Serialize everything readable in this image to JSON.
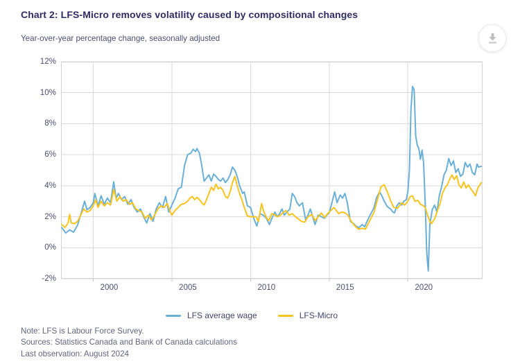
{
  "header": {
    "title": "Chart 2: LFS-Micro removes volatility caused by compositional changes",
    "subtitle": "Year-over-year percentage change, seasonally adjusted"
  },
  "toolbar": {
    "download_icon": "download-arrow-in-circle"
  },
  "footer": {
    "note": "Note: LFS is Labour Force Survey.",
    "sources": "Sources: Statistics Canada and Bank of Canada calculations",
    "last_observation": "Last observation: August 2024"
  },
  "chart_data": {
    "type": "line",
    "title": "Chart 2: LFS-Micro removes volatility caused by compositional changes",
    "subtitle": "Year-over-year percentage change, seasonally adjusted",
    "xlim": [
      1997.95,
      2024.75
    ],
    "ylim": [
      -2,
      12
    ],
    "grid": true,
    "gridline_color": "#dadada",
    "legend_position": "bottom",
    "y_ticks": [
      -2,
      0,
      2,
      4,
      6,
      8,
      10,
      12
    ],
    "y_tick_labels": [
      "-2%",
      "0%",
      "2%",
      "4%",
      "6%",
      "8%",
      "10%",
      "12%"
    ],
    "x_ticks": [
      2000,
      2005,
      2010,
      2015,
      2020
    ],
    "x_tick_labels": [
      "2000",
      "2005",
      "2010",
      "2015",
      "2020"
    ],
    "series": [
      {
        "name": "LFS average wage",
        "color": "#6aafd8",
        "x": [
          1998.0,
          1998.25,
          1998.5,
          1998.75,
          1999.0,
          1999.25,
          1999.45,
          1999.6,
          1999.8,
          2000.0,
          2000.1,
          2000.3,
          2000.5,
          2000.7,
          2000.9,
          2001.1,
          2001.3,
          2001.45,
          2001.6,
          2001.8,
          2002.0,
          2002.2,
          2002.4,
          2002.6,
          2002.8,
          2003.0,
          2003.2,
          2003.4,
          2003.6,
          2003.8,
          2004.0,
          2004.2,
          2004.4,
          2004.6,
          2004.8,
          2005.0,
          2005.2,
          2005.4,
          2005.6,
          2005.8,
          2006.0,
          2006.2,
          2006.35,
          2006.5,
          2006.6,
          2006.75,
          2006.9,
          2007.05,
          2007.2,
          2007.35,
          2007.5,
          2007.65,
          2007.8,
          2007.95,
          2008.1,
          2008.25,
          2008.4,
          2008.55,
          2008.7,
          2008.85,
          2009.0,
          2009.15,
          2009.3,
          2009.5,
          2009.6,
          2009.8,
          2010.0,
          2010.2,
          2010.4,
          2010.6,
          2010.8,
          2011.0,
          2011.2,
          2011.4,
          2011.55,
          2011.7,
          2011.85,
          2012.0,
          2012.15,
          2012.3,
          2012.5,
          2012.65,
          2012.8,
          2012.95,
          2013.1,
          2013.3,
          2013.5,
          2013.65,
          2013.8,
          2013.95,
          2014.1,
          2014.3,
          2014.5,
          2014.7,
          2014.85,
          2015.0,
          2015.2,
          2015.35,
          2015.5,
          2015.7,
          2015.85,
          2016.0,
          2016.15,
          2016.35,
          2016.55,
          2016.7,
          2016.9,
          2017.1,
          2017.25,
          2017.5,
          2017.7,
          2017.85,
          2018.0,
          2018.2,
          2018.35,
          2018.5,
          2018.7,
          2018.9,
          2019.05,
          2019.15,
          2019.3,
          2019.45,
          2019.6,
          2019.75,
          2019.9,
          2020.0,
          2020.1,
          2020.2,
          2020.3,
          2020.4,
          2020.5,
          2020.6,
          2020.7,
          2020.8,
          2020.9,
          2021.0,
          2021.1,
          2021.2,
          2021.3,
          2021.4,
          2021.55,
          2021.7,
          2021.85,
          2022.0,
          2022.15,
          2022.3,
          2022.45,
          2022.6,
          2022.75,
          2022.9,
          2023.05,
          2023.2,
          2023.35,
          2023.5,
          2023.65,
          2023.8,
          2023.95,
          2024.1,
          2024.25,
          2024.4,
          2024.5,
          2024.67
        ],
        "y": [
          1.3,
          0.95,
          1.15,
          1.0,
          1.45,
          2.3,
          3.0,
          2.45,
          2.6,
          2.9,
          3.5,
          2.7,
          3.35,
          2.8,
          3.2,
          2.9,
          4.25,
          3.2,
          3.5,
          3.1,
          3.3,
          2.8,
          3.1,
          2.6,
          2.3,
          2.5,
          2.0,
          1.6,
          2.2,
          1.7,
          2.5,
          2.9,
          2.6,
          3.3,
          2.3,
          2.75,
          3.2,
          3.8,
          3.9,
          5.3,
          6.0,
          6.1,
          6.35,
          6.2,
          6.4,
          6.1,
          5.3,
          4.3,
          4.5,
          4.7,
          4.3,
          4.75,
          4.6,
          4.4,
          4.3,
          4.5,
          4.2,
          4.4,
          4.7,
          5.2,
          5.0,
          4.6,
          4.0,
          3.5,
          3.6,
          2.7,
          2.6,
          1.9,
          1.4,
          2.2,
          2.1,
          1.9,
          1.5,
          2.0,
          2.3,
          2.0,
          2.2,
          2.5,
          2.1,
          2.3,
          2.5,
          3.5,
          3.3,
          2.9,
          2.7,
          2.9,
          1.8,
          2.1,
          2.5,
          2.0,
          1.5,
          2.1,
          2.0,
          1.9,
          2.1,
          2.25,
          3.0,
          3.6,
          2.9,
          3.4,
          3.2,
          3.5,
          2.9,
          1.7,
          1.55,
          1.4,
          1.3,
          1.5,
          1.35,
          1.9,
          2.3,
          2.6,
          3.2,
          3.6,
          3.35,
          3.0,
          2.65,
          2.5,
          2.3,
          2.25,
          2.7,
          2.9,
          2.75,
          3.0,
          3.1,
          3.6,
          5.0,
          9.0,
          10.4,
          10.2,
          7.2,
          6.6,
          6.4,
          5.7,
          6.3,
          5.5,
          3.0,
          -0.3,
          -1.5,
          1.5,
          2.45,
          2.75,
          2.3,
          3.35,
          3.95,
          4.7,
          5.0,
          5.75,
          5.3,
          5.6,
          4.85,
          5.1,
          4.6,
          4.75,
          5.5,
          5.2,
          5.4,
          4.85,
          4.7,
          5.4,
          5.2,
          5.25
        ]
      },
      {
        "name": "LFS-Micro",
        "color": "#f7c31e",
        "x": [
          1998.0,
          1998.2,
          1998.4,
          1998.5,
          1998.6,
          1998.8,
          1999.0,
          1999.2,
          1999.4,
          1999.6,
          1999.8,
          2000.0,
          2000.15,
          2000.3,
          2000.5,
          2000.7,
          2000.9,
          2001.1,
          2001.3,
          2001.5,
          2001.7,
          2001.9,
          2002.1,
          2002.3,
          2002.5,
          2002.7,
          2002.9,
          2003.1,
          2003.3,
          2003.5,
          2003.7,
          2003.9,
          2004.1,
          2004.3,
          2004.5,
          2004.7,
          2004.9,
          2005.0,
          2005.2,
          2005.4,
          2005.6,
          2005.8,
          2006.0,
          2006.15,
          2006.3,
          2006.45,
          2006.6,
          2006.75,
          2006.9,
          2007.05,
          2007.2,
          2007.35,
          2007.5,
          2007.65,
          2007.8,
          2007.95,
          2008.1,
          2008.25,
          2008.4,
          2008.55,
          2008.7,
          2008.85,
          2009.0,
          2009.15,
          2009.3,
          2009.45,
          2009.6,
          2009.8,
          2010.0,
          2010.2,
          2010.35,
          2010.5,
          2010.7,
          2010.85,
          2011.0,
          2011.15,
          2011.35,
          2011.55,
          2011.7,
          2011.9,
          2012.1,
          2012.25,
          2012.45,
          2012.65,
          2012.85,
          2013.05,
          2013.25,
          2013.45,
          2013.65,
          2013.9,
          2014.1,
          2014.3,
          2014.5,
          2014.7,
          2014.9,
          2015.0,
          2015.3,
          2015.45,
          2015.6,
          2015.8,
          2016.0,
          2016.2,
          2016.4,
          2016.6,
          2016.85,
          2017.1,
          2017.3,
          2017.55,
          2017.85,
          2018.05,
          2018.3,
          2018.5,
          2018.7,
          2018.9,
          2019.1,
          2019.35,
          2019.6,
          2019.8,
          2020.0,
          2020.15,
          2020.3,
          2020.45,
          2020.65,
          2020.8,
          2021.0,
          2021.1,
          2021.25,
          2021.4,
          2021.5,
          2021.7,
          2021.9,
          2022.05,
          2022.2,
          2022.35,
          2022.5,
          2022.65,
          2022.8,
          2022.95,
          2023.1,
          2023.25,
          2023.4,
          2023.55,
          2023.7,
          2023.85,
          2024.0,
          2024.15,
          2024.3,
          2024.45,
          2024.67
        ],
        "y": [
          1.5,
          1.3,
          1.6,
          2.15,
          1.6,
          1.55,
          1.7,
          2.1,
          2.5,
          2.3,
          2.4,
          2.7,
          3.1,
          2.6,
          3.0,
          2.7,
          2.9,
          2.75,
          3.75,
          3.0,
          3.3,
          3.0,
          3.1,
          2.8,
          2.9,
          2.5,
          2.4,
          2.3,
          1.9,
          2.1,
          1.8,
          2.1,
          2.5,
          2.7,
          2.6,
          2.85,
          2.3,
          2.1,
          2.4,
          2.6,
          2.8,
          2.85,
          3.0,
          3.2,
          3.3,
          3.1,
          3.25,
          3.1,
          2.9,
          2.75,
          3.1,
          3.5,
          3.9,
          3.7,
          4.1,
          3.8,
          3.9,
          3.7,
          3.3,
          3.2,
          3.6,
          4.2,
          4.6,
          4.0,
          3.5,
          3.1,
          2.6,
          2.05,
          2.0,
          2.0,
          2.0,
          1.7,
          2.85,
          2.3,
          1.95,
          1.75,
          2.2,
          2.1,
          2.0,
          2.1,
          2.3,
          2.4,
          2.1,
          2.2,
          2.0,
          1.85,
          1.7,
          1.65,
          2.0,
          2.15,
          1.75,
          2.0,
          2.25,
          1.95,
          2.2,
          2.3,
          2.6,
          2.4,
          2.2,
          2.3,
          2.25,
          2.1,
          1.7,
          1.45,
          1.2,
          1.25,
          1.2,
          1.7,
          2.3,
          3.05,
          3.95,
          4.05,
          3.6,
          3.05,
          2.6,
          2.55,
          2.9,
          2.75,
          3.0,
          3.3,
          3.35,
          3.0,
          3.05,
          2.8,
          2.7,
          2.6,
          2.1,
          1.7,
          1.55,
          1.85,
          2.45,
          2.85,
          3.5,
          3.85,
          4.05,
          4.4,
          4.7,
          4.4,
          4.65,
          4.05,
          3.85,
          4.25,
          3.85,
          4.05,
          3.8,
          3.6,
          3.35,
          3.85,
          4.2
        ]
      }
    ]
  }
}
